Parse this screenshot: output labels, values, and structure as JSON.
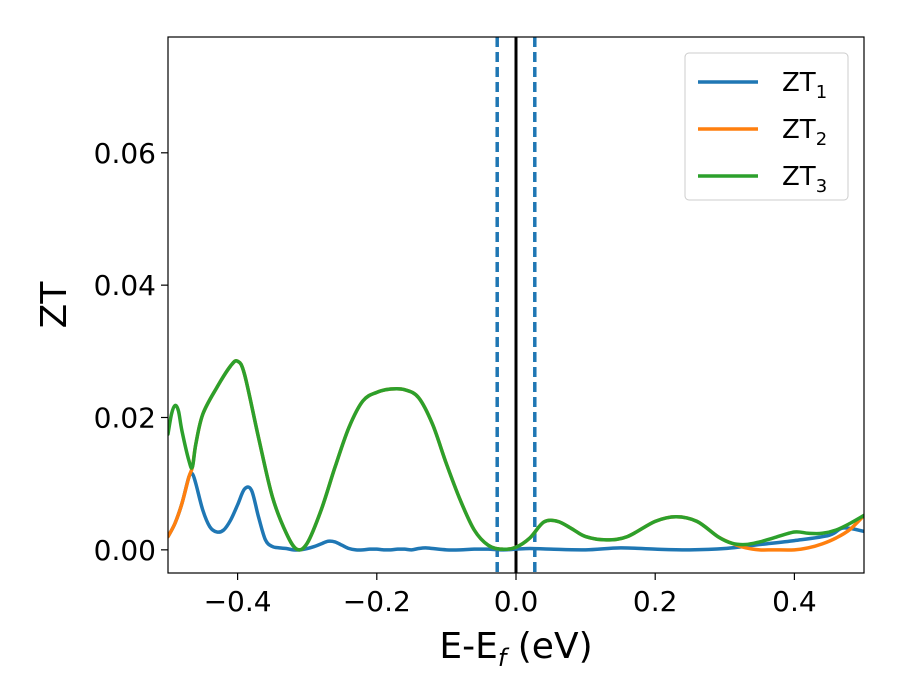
{
  "chart_data": {
    "type": "line",
    "xlabel": "E-E",
    "xlabel_sub": "f",
    "xlabel_unit": " (eV)",
    "ylabel": "ZT",
    "xlim": [
      -0.5,
      0.5
    ],
    "ylim": [
      -0.0035,
      0.0775
    ],
    "xticks": [
      -0.4,
      -0.2,
      0.0,
      0.2,
      0.4
    ],
    "xtick_labels": [
      "−0.4",
      "−0.2",
      "0.0",
      "0.2",
      "0.4"
    ],
    "yticks": [
      0.0,
      0.02,
      0.04,
      0.06
    ],
    "ytick_labels": [
      "0.00",
      "0.02",
      "0.04",
      "0.06"
    ],
    "grid": false,
    "legend_position": "top-right",
    "vlines": [
      {
        "x": 0.0,
        "color": "#000000",
        "style": "solid"
      },
      {
        "x": -0.027,
        "color": "#1f77b4",
        "style": "dashed"
      },
      {
        "x": 0.027,
        "color": "#1f77b4",
        "style": "dashed"
      }
    ],
    "series": [
      {
        "name": "ZT",
        "sub": "1",
        "color": "#1f77b4",
        "x": [
          -0.5,
          -0.49,
          -0.48,
          -0.47,
          -0.465,
          -0.46,
          -0.45,
          -0.44,
          -0.43,
          -0.42,
          -0.41,
          -0.4,
          -0.39,
          -0.38,
          -0.37,
          -0.36,
          -0.35,
          -0.34,
          -0.33,
          -0.32,
          -0.31,
          -0.3,
          -0.29,
          -0.28,
          -0.27,
          -0.26,
          -0.25,
          -0.24,
          -0.23,
          -0.22,
          -0.21,
          -0.2,
          -0.19,
          -0.18,
          -0.17,
          -0.16,
          -0.15,
          -0.14,
          -0.13,
          -0.12,
          -0.1,
          -0.08,
          -0.06,
          -0.04,
          -0.02,
          0.0,
          0.02,
          0.05,
          0.1,
          0.15,
          0.2,
          0.25,
          0.3,
          0.35,
          0.4,
          0.45,
          0.47,
          0.5
        ],
        "y": [
          0.002,
          0.004,
          0.007,
          0.011,
          0.0115,
          0.01,
          0.006,
          0.0035,
          0.0027,
          0.003,
          0.0045,
          0.0068,
          0.0092,
          0.009,
          0.005,
          0.0015,
          0.0005,
          0.0003,
          0.0002,
          0.0,
          0.0,
          0.0002,
          0.0005,
          0.0009,
          0.0013,
          0.0012,
          0.0007,
          0.0002,
          0.0,
          0.0,
          0.0001,
          0.0001,
          0.0,
          0.0,
          0.0001,
          0.0001,
          0.0,
          0.0002,
          0.0003,
          0.0002,
          0.0,
          0.0,
          0.0001,
          0.0001,
          0.0,
          0.0001,
          0.0002,
          0.0001,
          0.0,
          0.0003,
          0.0001,
          0.0,
          0.0002,
          0.0008,
          0.0014,
          0.0022,
          0.0033,
          0.0028
        ]
      },
      {
        "name": "ZT",
        "sub": "2",
        "color": "#ff7f0e",
        "x": [
          -0.5,
          -0.49,
          -0.48,
          -0.47,
          -0.465,
          -0.46,
          -0.45,
          -0.43,
          -0.41,
          -0.4,
          -0.39,
          -0.37,
          -0.35,
          -0.33,
          -0.315,
          -0.3,
          -0.28,
          -0.26,
          -0.24,
          -0.22,
          -0.2,
          -0.18,
          -0.16,
          -0.14,
          -0.12,
          -0.1,
          -0.08,
          -0.06,
          -0.04,
          -0.02,
          0.0,
          0.02,
          0.04,
          0.06,
          0.08,
          0.1,
          0.13,
          0.16,
          0.2,
          0.23,
          0.26,
          0.29,
          0.31,
          0.33,
          0.35,
          0.37,
          0.4,
          0.42,
          0.44,
          0.46,
          0.48,
          0.5
        ],
        "y": [
          0.002,
          0.004,
          0.007,
          0.011,
          0.0125,
          0.016,
          0.0205,
          0.0245,
          0.0278,
          0.0285,
          0.0265,
          0.017,
          0.008,
          0.0025,
          0.0001,
          0.001,
          0.006,
          0.0125,
          0.0185,
          0.0225,
          0.0238,
          0.0243,
          0.0242,
          0.023,
          0.019,
          0.013,
          0.0075,
          0.003,
          0.0007,
          0.0001,
          0.0004,
          0.0018,
          0.0042,
          0.0043,
          0.0032,
          0.002,
          0.0015,
          0.002,
          0.0043,
          0.005,
          0.0043,
          0.002,
          0.001,
          0.0003,
          0.0,
          0.0,
          0.0,
          0.0003,
          0.0009,
          0.0018,
          0.0031,
          0.0052
        ]
      },
      {
        "name": "ZT",
        "sub": "3",
        "color": "#2ca02c",
        "x": [
          -0.5,
          -0.495,
          -0.49,
          -0.485,
          -0.48,
          -0.47,
          -0.465,
          -0.46,
          -0.45,
          -0.43,
          -0.41,
          -0.4,
          -0.39,
          -0.37,
          -0.35,
          -0.33,
          -0.315,
          -0.3,
          -0.28,
          -0.26,
          -0.24,
          -0.22,
          -0.2,
          -0.18,
          -0.16,
          -0.14,
          -0.12,
          -0.1,
          -0.08,
          -0.06,
          -0.04,
          -0.02,
          0.0,
          0.02,
          0.04,
          0.06,
          0.08,
          0.1,
          0.13,
          0.16,
          0.2,
          0.23,
          0.26,
          0.29,
          0.31,
          0.33,
          0.35,
          0.37,
          0.4,
          0.42,
          0.44,
          0.46,
          0.48,
          0.5
        ],
        "y": [
          0.0175,
          0.0205,
          0.0218,
          0.021,
          0.018,
          0.0135,
          0.0125,
          0.016,
          0.0205,
          0.0245,
          0.0278,
          0.0285,
          0.0265,
          0.017,
          0.008,
          0.0025,
          0.0001,
          0.001,
          0.006,
          0.0125,
          0.0185,
          0.0225,
          0.0238,
          0.0243,
          0.0242,
          0.023,
          0.019,
          0.013,
          0.0075,
          0.003,
          0.0007,
          0.0001,
          0.0004,
          0.0018,
          0.0042,
          0.0043,
          0.0032,
          0.002,
          0.0015,
          0.002,
          0.0043,
          0.005,
          0.0043,
          0.002,
          0.001,
          0.0008,
          0.0012,
          0.0018,
          0.0027,
          0.0025,
          0.0025,
          0.003,
          0.004,
          0.0052
        ]
      }
    ]
  }
}
